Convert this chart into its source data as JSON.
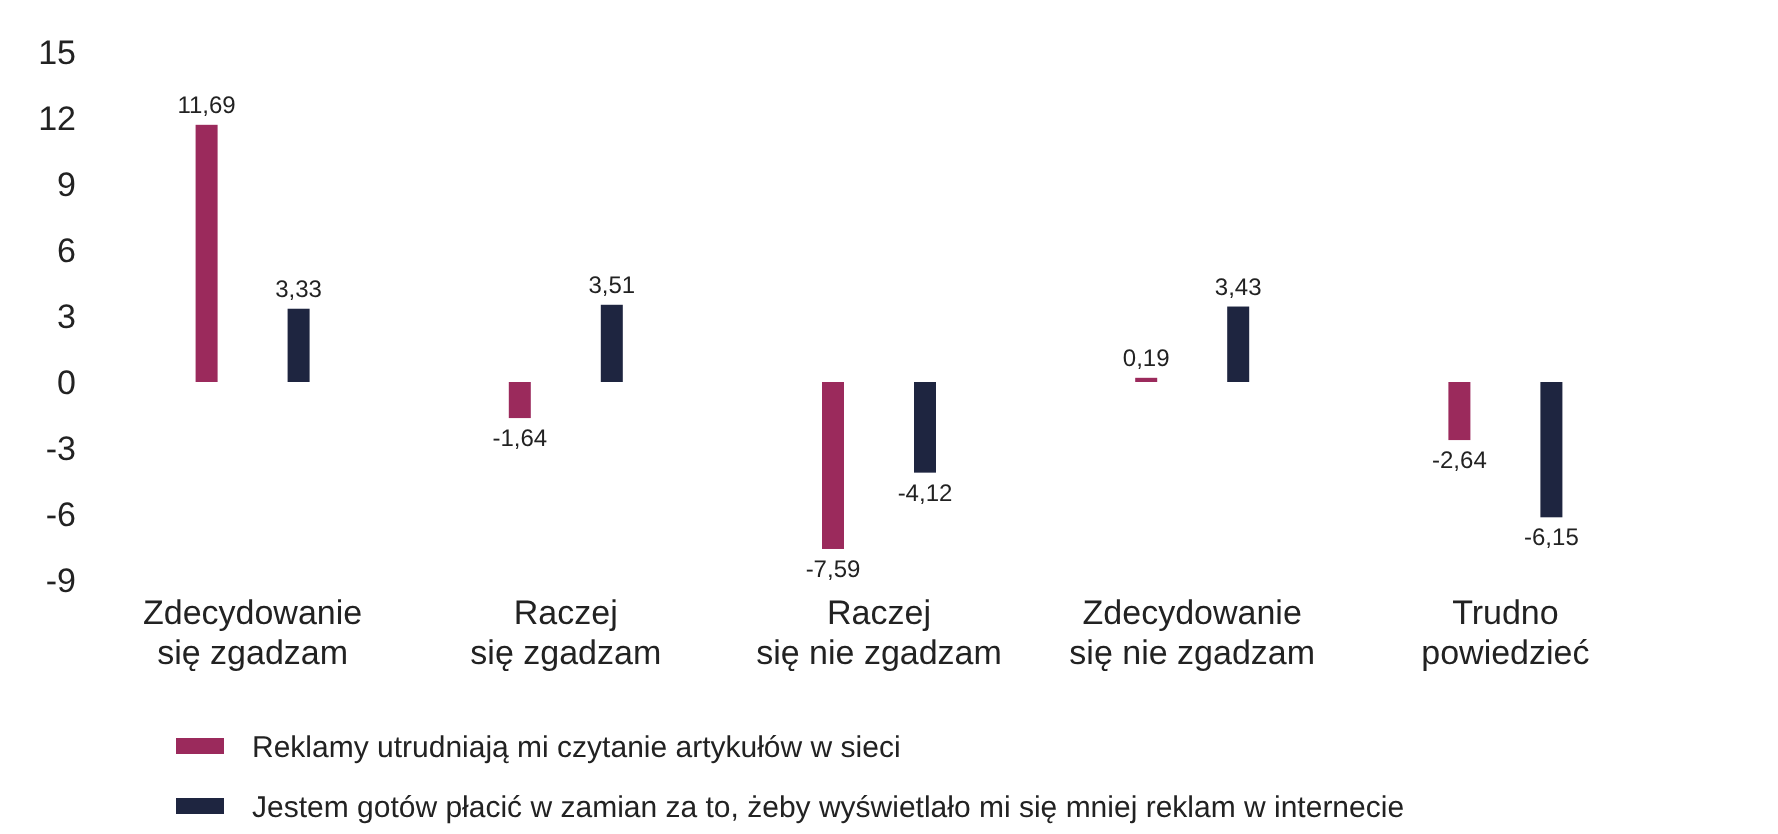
{
  "chart_data": {
    "type": "bar",
    "categories": [
      "Zdecydowanie\nsię zgadzam",
      "Raczej\nsię zgadzam",
      "Raczej\nsię nie zgadzam",
      "Zdecydowanie\nsię nie zgadzam",
      "Trudno\npowiedzieć"
    ],
    "series": [
      {
        "name": "Reklamy utrudniają mi czytanie artykułów w sieci",
        "color": "#9b2a5c",
        "values": [
          11.69,
          -1.64,
          -7.59,
          0.19,
          -2.64
        ],
        "value_labels": [
          "11,69",
          "-1,64",
          "-7,59",
          "0,19",
          "-2,64"
        ]
      },
      {
        "name": "Jestem gotów płacić w zamian za to, żeby wyświetlało mi się mniej reklam w internecie",
        "color": "#1e2540",
        "values": [
          3.33,
          3.51,
          -4.12,
          3.43,
          -6.15
        ],
        "value_labels": [
          "3,33",
          "3,51",
          "-4,12",
          "3,43",
          "-6,15"
        ]
      }
    ],
    "ylim": [
      -9,
      15
    ],
    "yticks": [
      -9,
      -6,
      -3,
      0,
      3,
      6,
      9,
      12,
      15
    ],
    "grid": false,
    "legend": "bottom left"
  }
}
